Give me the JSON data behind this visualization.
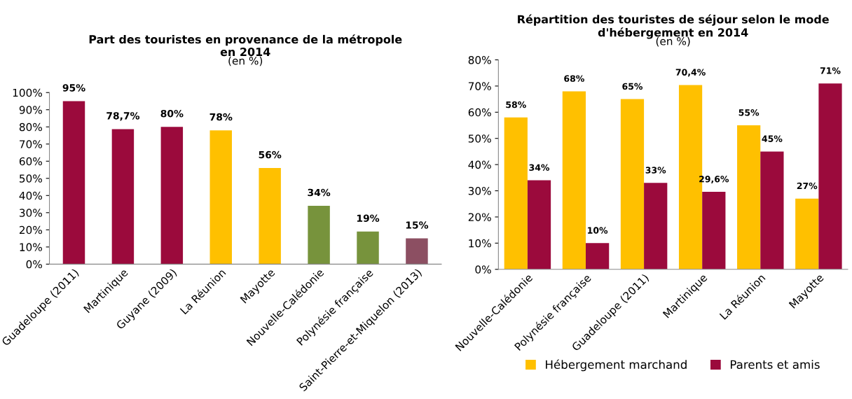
{
  "chart_data": [
    {
      "type": "bar",
      "title": "Part des touristes en provenance de la métropole\nen 2014",
      "subtitle": "(en %)",
      "categories": [
        "Guadeloupe (2011)",
        "Martinique",
        "Guyane (2009)",
        "La Réunion",
        "Mayotte",
        "Nouvelle-Calédonie",
        "Polynésie française",
        "Saint-Pierre-et-Miquelon (2013)"
      ],
      "values": [
        95,
        78.7,
        80,
        78,
        56,
        34,
        19,
        15
      ],
      "colors": [
        "#9b0a3c",
        "#9b0a3c",
        "#9b0a3c",
        "#ffc000",
        "#ffc000",
        "#77933c",
        "#77933c",
        "#8c4f62"
      ],
      "value_labels": [
        "95%",
        "78,7%",
        "80%",
        "78%",
        "56%",
        "34%",
        "19%",
        "15%"
      ],
      "ylim": [
        0,
        100
      ],
      "yticks": [
        {
          "value": 0,
          "label": "0%"
        },
        {
          "value": 10,
          "label": "10%"
        },
        {
          "value": 20,
          "label": "20%"
        },
        {
          "value": 30,
          "label": "30%"
        },
        {
          "value": 40,
          "label": "40%"
        },
        {
          "value": 50,
          "label": "50%"
        },
        {
          "value": 60,
          "label": "60%"
        },
        {
          "value": 70,
          "label": "70%"
        },
        {
          "value": 80,
          "label": "80%"
        },
        {
          "value": 90,
          "label": "90%"
        },
        {
          "value": 100,
          "label": "100%"
        }
      ],
      "grid": false,
      "legend": false
    },
    {
      "type": "bar",
      "title": "Répartition des touristes de séjour selon le mode\nd'hébergement en 2014",
      "subtitle": "(en %)",
      "categories": [
        "Nouvelle-Calédonie",
        "Polynésie française",
        "Guadeloupe (2011)",
        "Martinique",
        "La Réunion",
        "Mayotte"
      ],
      "series": [
        {
          "name": "Hébergement marchand",
          "color": "#ffc000",
          "values": [
            58,
            68,
            65,
            70.4,
            55,
            27
          ],
          "value_labels": [
            "58%",
            "68%",
            "65%",
            "70,4%",
            "55%",
            "27%"
          ]
        },
        {
          "name": "Parents et amis",
          "color": "#9b0a3c",
          "values": [
            34,
            10,
            33,
            29.6,
            45,
            71
          ],
          "value_labels": [
            "34%",
            "10%",
            "33%",
            "29,6%",
            "45%",
            "71%"
          ]
        }
      ],
      "ylim": [
        0,
        80
      ],
      "yticks": [
        {
          "value": 0,
          "label": "0%"
        },
        {
          "value": 10,
          "label": "10%"
        },
        {
          "value": 20,
          "label": "20%"
        },
        {
          "value": 30,
          "label": "30%"
        },
        {
          "value": 40,
          "label": "40%"
        },
        {
          "value": 50,
          "label": "50%"
        },
        {
          "value": 60,
          "label": "60%"
        },
        {
          "value": 70,
          "label": "70%"
        },
        {
          "value": 80,
          "label": "80%"
        }
      ],
      "grid": false,
      "legend": "bottom"
    }
  ]
}
